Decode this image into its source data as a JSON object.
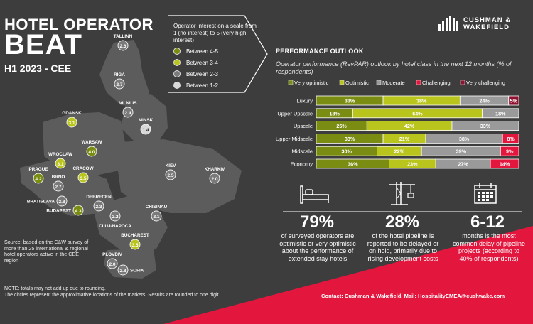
{
  "header": {
    "title_line1": "HOTEL OPERATOR",
    "title_line2": "BEAT",
    "period": "H1 2023 - CEE",
    "brand_line1": "CUSHMAN &",
    "brand_line2": "WAKEFIELD"
  },
  "map_legend": {
    "intro": "Operator interest on a scale from 1 (no interest) to 5 (very high interest)",
    "items": [
      {
        "label": "Between 4-5",
        "color": "#7b8c12"
      },
      {
        "label": "Between 3-4",
        "color": "#b9c41c"
      },
      {
        "label": "Between 2-3",
        "color": "#7a7a7a"
      },
      {
        "label": "Between 1-2",
        "color": "#d8d8d8"
      }
    ]
  },
  "cities": [
    {
      "name": "TALLINN",
      "value": "2.6"
    },
    {
      "name": "RIGA",
      "value": "2.7"
    },
    {
      "name": "VILNIUS",
      "value": "2.4"
    },
    {
      "name": "MINSK",
      "value": "1.4"
    },
    {
      "name": "GDANSK",
      "value": "3.1"
    },
    {
      "name": "WARSAW",
      "value": "4.0"
    },
    {
      "name": "WROCLAW",
      "value": "3.1"
    },
    {
      "name": "PRAGUE",
      "value": "4.2"
    },
    {
      "name": "BRNO",
      "value": "2.7"
    },
    {
      "name": "CRACOW",
      "value": "3.5"
    },
    {
      "name": "KIEV",
      "value": "2.5"
    },
    {
      "name": "KHARKIV",
      "value": "2.0"
    },
    {
      "name": "BRATISLAVA",
      "value": "2.8"
    },
    {
      "name": "DEBRECEN",
      "value": "2.3"
    },
    {
      "name": "BUDAPEST",
      "value": "4.3"
    },
    {
      "name": "CLUJ-NAPOCA",
      "value": "2.2"
    },
    {
      "name": "CHISINAU",
      "value": "2.1"
    },
    {
      "name": "BUCHAREST",
      "value": "3.5"
    },
    {
      "name": "PLOVDIV",
      "value": "2.0"
    },
    {
      "name": "SOFIA",
      "value": "2.8"
    }
  ],
  "performance": {
    "title": "PERFORMANCE OUTLOOK",
    "subtitle": "Operator performance (RevPAR) outlook by hotel class in the next 12 months (% of respondents)"
  },
  "chart_data": {
    "type": "bar",
    "orientation": "horizontal",
    "stacked": true,
    "categories": [
      "Luxury",
      "Upper Upscale",
      "Upscale",
      "Upper Midscale",
      "Midscale",
      "Economy"
    ],
    "series": [
      {
        "name": "Very optimistic",
        "color": "#7b8c12",
        "values": [
          33,
          18,
          25,
          33,
          30,
          36
        ]
      },
      {
        "name": "Optimistic",
        "color": "#b9c41c",
        "values": [
          38,
          64,
          42,
          21,
          22,
          23
        ]
      },
      {
        "name": "Moderate",
        "color": "#9a9a9a",
        "values": [
          24,
          18,
          33,
          38,
          39,
          27
        ]
      },
      {
        "name": "Challenging",
        "color": "#e3173e",
        "values": [
          0,
          0,
          0,
          8,
          9,
          14
        ]
      },
      {
        "name": "Very challenging",
        "color": "#8e1230",
        "values": [
          5,
          0,
          0,
          0,
          0,
          0
        ]
      }
    ],
    "legend_position": "top",
    "xlim": [
      0,
      100
    ]
  },
  "stats": [
    {
      "icon": "bed-icon",
      "value": "79%",
      "text": "of surveyed operators are optimistic or very optimistic about the performance of extended stay hotels"
    },
    {
      "icon": "crane-icon",
      "value": "28%",
      "text": "of the hotel pipeline is reported to be delayed or on hold, primarily due to rising development costs"
    },
    {
      "icon": "calendar-icon",
      "value": "6-12",
      "text": "months is the most common delay of pipeline projects (according to 40% of respondents)"
    }
  ],
  "footer": {
    "source": "Source: based on the C&W survey of more than 25 international & regional hotel operators active in the CEE region",
    "note_line1": "NOTE: totals may not add up due to rounding.",
    "note_line2": "The circles represent the approximative locations of the markets. Results are rounded to one digit.",
    "contact": "Contact: Cushman & Wakefield, Mail: HospitalityEMEA@cushwake.com"
  },
  "colors": {
    "background": "#3d3d3d",
    "map": "#5c5c5c",
    "accent_red": "#e3173e"
  }
}
